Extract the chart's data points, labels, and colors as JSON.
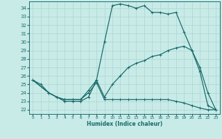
{
  "xlabel": "Humidex (Indice chaleur)",
  "xlim": [
    -0.5,
    23.5
  ],
  "ylim": [
    21.5,
    34.8
  ],
  "yticks": [
    22,
    23,
    24,
    25,
    26,
    27,
    28,
    29,
    30,
    31,
    32,
    33,
    34
  ],
  "xticks": [
    0,
    1,
    2,
    3,
    4,
    5,
    6,
    7,
    8,
    9,
    10,
    11,
    12,
    13,
    14,
    15,
    16,
    17,
    18,
    19,
    20,
    21,
    22,
    23
  ],
  "bg_color": "#c8ebe8",
  "line_color": "#1a6b6b",
  "grid_color": "#b0d8d4",
  "curve1_x": [
    0,
    1,
    2,
    3,
    4,
    5,
    6,
    7,
    8,
    9,
    10,
    11,
    12,
    13,
    14,
    15,
    16,
    17,
    18,
    19,
    20,
    21,
    22,
    23
  ],
  "curve1_y": [
    25.5,
    25.0,
    24.0,
    23.5,
    23.0,
    23.0,
    23.0,
    23.5,
    25.5,
    30.0,
    34.3,
    34.5,
    34.3,
    34.0,
    34.3,
    33.5,
    33.5,
    33.3,
    33.5,
    31.2,
    29.0,
    27.0,
    24.0,
    22.0
  ],
  "curve2_x": [
    0,
    2,
    3,
    4,
    5,
    6,
    7,
    8,
    9,
    10,
    11,
    12,
    13,
    14,
    15,
    16,
    17,
    18,
    19,
    20,
    21,
    22,
    23
  ],
  "curve2_y": [
    25.5,
    24.0,
    23.5,
    23.2,
    23.2,
    23.2,
    24.3,
    25.5,
    23.5,
    25.0,
    26.0,
    27.0,
    27.5,
    27.8,
    28.3,
    28.5,
    29.0,
    29.3,
    29.5,
    29.0,
    26.5,
    22.5,
    22.0
  ],
  "curve3_x": [
    0,
    2,
    3,
    4,
    5,
    6,
    7,
    8,
    9,
    10,
    11,
    12,
    13,
    14,
    15,
    16,
    17,
    18,
    19,
    20,
    21,
    22,
    23
  ],
  "curve3_y": [
    25.5,
    24.0,
    23.5,
    23.2,
    23.2,
    23.2,
    24.0,
    25.2,
    23.2,
    23.2,
    23.2,
    23.2,
    23.2,
    23.2,
    23.2,
    23.2,
    23.2,
    23.0,
    22.8,
    22.5,
    22.2,
    22.0,
    22.0
  ]
}
